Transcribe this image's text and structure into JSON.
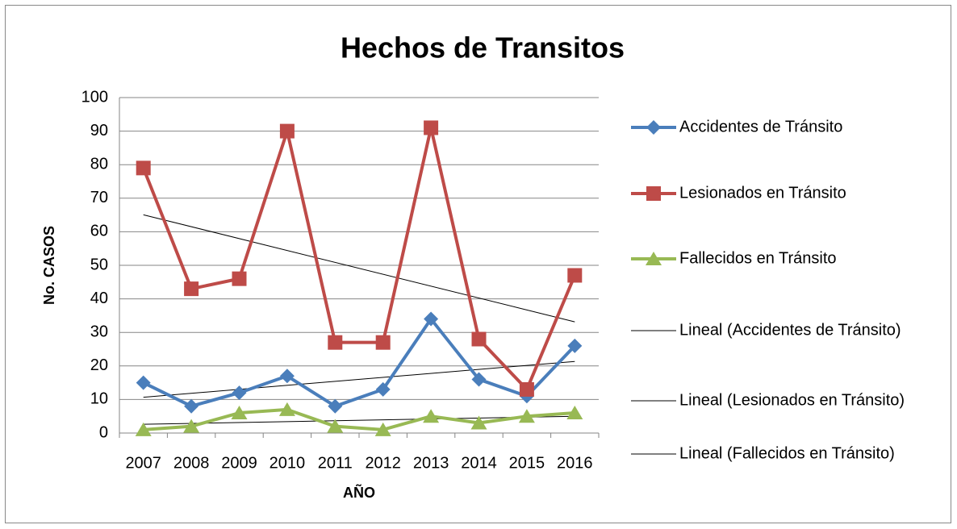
{
  "chart_data": {
    "type": "line",
    "title": "Hechos de Transitos",
    "x_label": "AÑO",
    "y_label": "No. CASOS",
    "categories": [
      "2007",
      "2008",
      "2009",
      "2010",
      "2011",
      "2012",
      "2013",
      "2014",
      "2015",
      "2016"
    ],
    "series": [
      {
        "name": "Accidentes de Tránsito",
        "color": "#4a7ebb",
        "marker": "diamond",
        "values": [
          15,
          8,
          12,
          17,
          8,
          13,
          34,
          16,
          11,
          26
        ],
        "trendline": {
          "name": "Lineal (Accidentes de Tránsito)",
          "color": "#000000"
        }
      },
      {
        "name": "Lesionados en Tránsito",
        "color": "#be4b48",
        "marker": "square",
        "values": [
          79,
          43,
          46,
          90,
          27,
          27,
          91,
          28,
          13,
          47
        ],
        "trendline": {
          "name": "Lineal (Lesionados en Tránsito)",
          "color": "#000000"
        }
      },
      {
        "name": "Fallecidos en Tránsito",
        "color": "#98b954",
        "marker": "triangle",
        "values": [
          1,
          2,
          6,
          7,
          2,
          1,
          5,
          3,
          5,
          6
        ],
        "trendline": {
          "name": "Lineal (Fallecidos en Tránsito)",
          "color": "#000000"
        }
      }
    ],
    "ylim": [
      0,
      100
    ],
    "yticks": [
      0,
      10,
      20,
      30,
      40,
      50,
      60,
      70,
      80,
      90,
      100
    ],
    "grid": true,
    "legend": "right"
  }
}
